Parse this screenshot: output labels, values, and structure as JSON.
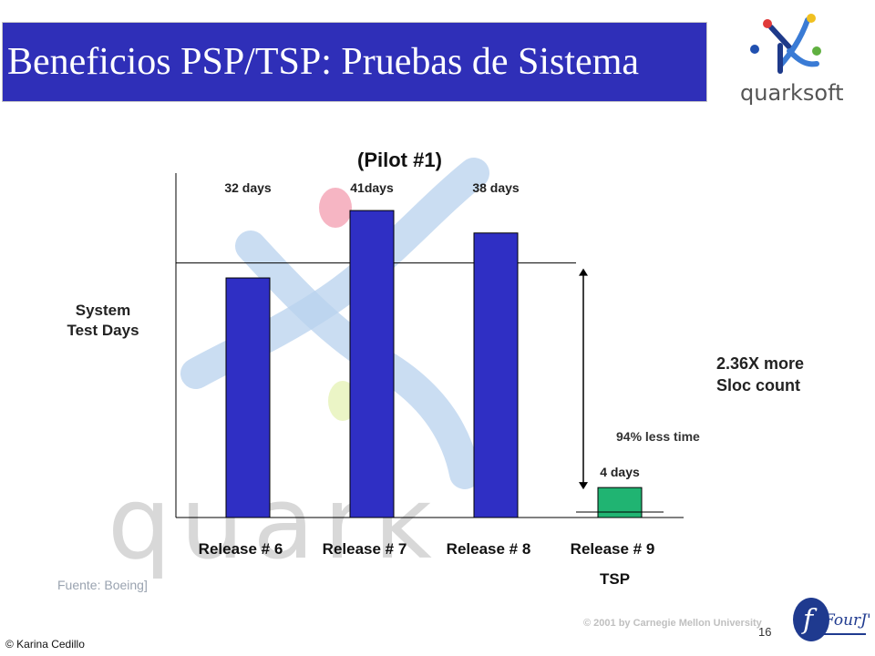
{
  "slide": {
    "title": "Beneficios PSP/TSP: Pruebas de Sistema",
    "source": "Fuente:  Boeing]",
    "copyright": "© 2001 by Carnegie Mellon University",
    "page_number": "16",
    "author": "© Karina Cedillo",
    "logo_quarksoft": "quarksoft",
    "logo_fourjs": "FourJ's",
    "watermark_text": "quark"
  },
  "notes": {
    "sloc_line1": "2.36X more",
    "sloc_line2": "Sloc count",
    "less_time": "94%  less  time",
    "tsp": "TSP"
  },
  "colors": {
    "title_bg": "#2f2fb8",
    "bar": "#2f2fc4",
    "tsp_bar": "#20b472"
  },
  "chart_data": {
    "type": "bar",
    "title": "(Pilot #1)",
    "ylabel_line1": "System",
    "ylabel_line2": "Test Days",
    "categories": [
      "Release # 6",
      "Release # 7",
      "Release # 8",
      "Release # 9"
    ],
    "values": [
      32,
      41,
      38,
      4
    ],
    "data_labels": [
      "32 days",
      "41days",
      "38 days",
      "4 days"
    ],
    "reference_line": 34,
    "ylim": [
      0,
      46
    ],
    "grid": false
  }
}
